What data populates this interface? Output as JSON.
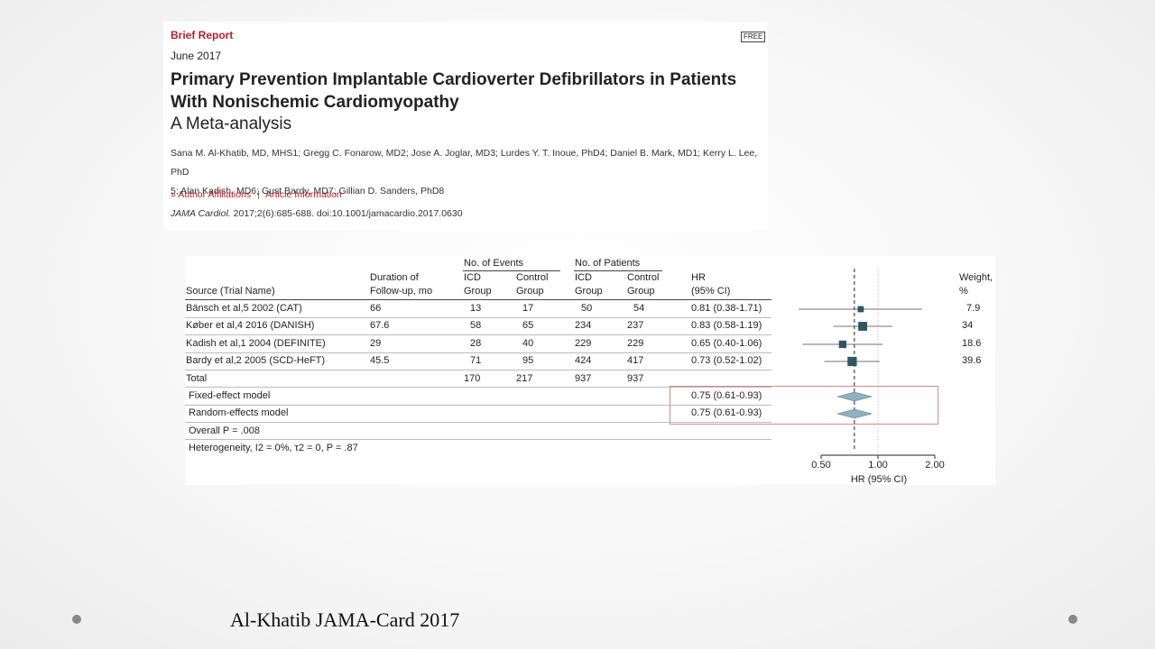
{
  "article": {
    "report_type": "Brief Report",
    "free_badge": "FREE",
    "date": "June 2017",
    "title": "Primary Prevention Implantable Cardioverter Defibrillators in Patients With Nonischemic Cardiomyopathy",
    "subtitle": "A Meta-analysis",
    "authors_line1": "Sana M. Al-Khatib, MD, MHS1; Gregg C. Fonarow, MD2; Jose A. Joglar, MD3; Lurdes Y. T. Inoue, PhD4; Daniel B. Mark, MD1; Kerry L. Lee, PhD",
    "authors_line2": "5; Alan Kadish, MD6; Gust Bardy, MD7; Gillian D. Sanders, PhD8",
    "link_affiliations": "Author Affiliations",
    "link_separator": "|",
    "link_article_info": "Article Information",
    "link_chevron": "»",
    "citation_journal": "JAMA Cardiol.",
    "citation_rest": " 2017;2(6):685-688. doi:10.1001/jamacardio.2017.0630"
  },
  "table": {
    "group_events": "No. of Events",
    "group_patients": "No. of Patients",
    "col_source": "Source (Trial Name)",
    "col_duration_1": "Duration of",
    "col_duration_2": "Follow-up, mo",
    "col_icd_1": "ICD",
    "col_group": "Group",
    "col_control_1": "Control",
    "col_hr_1": "HR",
    "col_hr_2": "(95% CI)",
    "col_weight_1": "Weight,",
    "col_weight_2": "%",
    "rows": [
      {
        "source": "Bänsch et al,5 2002 (CAT)",
        "duration": "66",
        "ev_icd": "13",
        "ev_ctrl": "17",
        "pt_icd": "50",
        "pt_ctrl": "54",
        "hr": "0.81 (0.38-1.71)",
        "weight": "7.9"
      },
      {
        "source": "Køber et al,4  2016 (DANISH)",
        "duration": "67.6",
        "ev_icd": "58",
        "ev_ctrl": "65",
        "pt_icd": "234",
        "pt_ctrl": "237",
        "hr": "0.83 (0.58-1.19)",
        "weight": "34"
      },
      {
        "source": "Kadish et al,1 2004 (DEFINITE)",
        "duration": "29",
        "ev_icd": "28",
        "ev_ctrl": "40",
        "pt_icd": "229",
        "pt_ctrl": "229",
        "hr": "0.65 (0.40-1.06)",
        "weight": "18.6"
      },
      {
        "source": "Bardy et al,2 2005 (SCD-HeFT)",
        "duration": "45.5",
        "ev_icd": "71",
        "ev_ctrl": "95",
        "pt_icd": "424",
        "pt_ctrl": "417",
        "hr": "0.73 (0.52-1.02)",
        "weight": "39.6"
      }
    ],
    "total": {
      "label": "Total",
      "ev_icd": "170",
      "ev_ctrl": "217",
      "pt_icd": "937",
      "pt_ctrl": "937"
    },
    "fixed": {
      "label": "Fixed-effect model",
      "hr": "0.75 (0.61-0.93)"
    },
    "random": {
      "label": "Random-effects model",
      "hr": "0.75 (0.61-0.93)"
    },
    "overall": "Overall P = .008",
    "heterogeneity": "Heterogeneity, I2 = 0%, τ2 = 0, P = .87"
  },
  "chart_data": {
    "type": "forest",
    "x_scale": "log",
    "xlabel": "HR (95% CI)",
    "xticks": [
      "0.50",
      "1.00",
      "2.00"
    ],
    "xlim": [
      0.5,
      2.0
    ],
    "reference_line": 1.0,
    "pooled_line": 0.75,
    "studies": [
      {
        "label": "Bänsch et al, 2002 (CAT)",
        "hr": 0.81,
        "lo": 0.38,
        "hi": 1.71,
        "weight": 7.9
      },
      {
        "label": "Køber et al, 2016 (DANISH)",
        "hr": 0.83,
        "lo": 0.58,
        "hi": 1.19,
        "weight": 34
      },
      {
        "label": "Kadish et al, 2004 (DEFINITE)",
        "hr": 0.65,
        "lo": 0.4,
        "hi": 1.06,
        "weight": 18.6
      },
      {
        "label": "Bardy et al, 2005 (SCD-HeFT)",
        "hr": 0.73,
        "lo": 0.52,
        "hi": 1.02,
        "weight": 39.6
      }
    ],
    "pooled": [
      {
        "label": "Fixed-effect model",
        "hr": 0.75,
        "lo": 0.61,
        "hi": 0.93
      },
      {
        "label": "Random-effects model",
        "hr": 0.75,
        "lo": 0.61,
        "hi": 0.93
      }
    ],
    "colors": {
      "square": "#2e5663",
      "diamond": "#8fb0bd",
      "ci_line": "#444444"
    }
  },
  "caption": "Al-Khatib JAMA-Card 2017"
}
